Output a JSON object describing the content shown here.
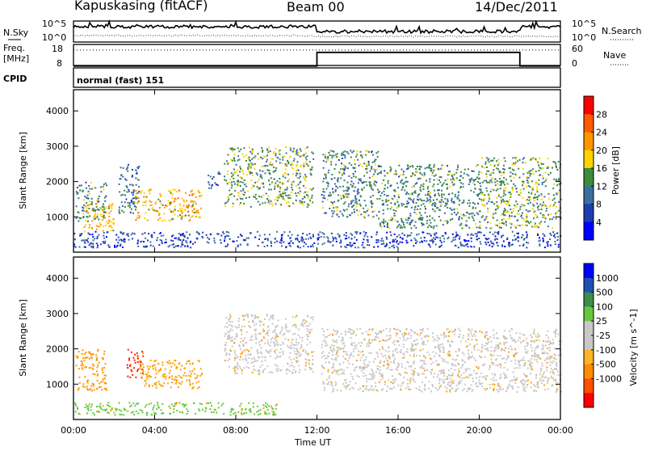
{
  "header": {
    "station": "Kapuskasing (fitACF)",
    "beam": "Beam 00",
    "date": "14/Dec/2011"
  },
  "noise_panel": {
    "left_label": "N.Sky",
    "right_label": "N.Search",
    "left_ticks": [
      "10^5",
      "10^0"
    ],
    "right_ticks": [
      "10^5",
      "10^0"
    ]
  },
  "freq_panel": {
    "left_label_line1": "Freq.",
    "left_label_line2": "[MHz]",
    "right_label": "Nave",
    "left_ticks": [
      "18",
      "8"
    ],
    "right_ticks": [
      "60",
      "0"
    ],
    "freq_steps": [
      {
        "t_start": 0,
        "t_end": 12,
        "level": 8.5
      },
      {
        "t_start": 12,
        "t_end": 22,
        "level": 15
      },
      {
        "t_start": 22,
        "t_end": 24,
        "level": 8.5
      }
    ],
    "nave_dotted_level": 44
  },
  "cpid": {
    "label": "CPID",
    "mode": "normal (fast) 151"
  },
  "colors": {
    "frame": "#000000",
    "ground_scatter": "#c8c8c8"
  },
  "chart_data": [
    {
      "type": "heatmap",
      "title": "Power",
      "ylabel": "Slant Range [km]",
      "ylim": [
        0,
        4600
      ],
      "xlim": [
        0,
        24
      ],
      "y_ticks": [
        "1000",
        "2000",
        "3000",
        "4000"
      ],
      "y_tick_values": [
        1000,
        2000,
        3000,
        4000
      ],
      "colorbar_label": "Power [dB]",
      "colorbar_ticks": [
        "28",
        "24",
        "20",
        "16",
        "12",
        "8",
        "4"
      ],
      "colorbar_colors": [
        "#ff0000",
        "#ff5a00",
        "#ff9600",
        "#ffd200",
        "#3c8c3c",
        "#3c6ea0",
        "#1e3cb4",
        "#0000ff"
      ],
      "scatter_regions": [
        {
          "t0": 0.1,
          "t1": 1.6,
          "r0": 900,
          "r1": 2000,
          "level": 10
        },
        {
          "t0": 0.5,
          "t1": 2.0,
          "r0": 600,
          "r1": 1400,
          "level": 18
        },
        {
          "t0": 2.2,
          "t1": 3.2,
          "r0": 1100,
          "r1": 2500,
          "level": 8
        },
        {
          "t0": 3.0,
          "t1": 6.3,
          "r0": 900,
          "r1": 1800,
          "level": 18
        },
        {
          "t0": 6.6,
          "t1": 7.2,
          "r0": 1800,
          "r1": 2300,
          "level": 6
        },
        {
          "t0": 7.4,
          "t1": 11.8,
          "r0": 1300,
          "r1": 3000,
          "level": 12
        },
        {
          "t0": 12.2,
          "t1": 15.0,
          "r0": 1000,
          "r1": 2900,
          "level": 10
        },
        {
          "t0": 15.0,
          "t1": 20.0,
          "r0": 700,
          "r1": 2500,
          "level": 10
        },
        {
          "t0": 20.0,
          "t1": 24.0,
          "r0": 700,
          "r1": 2700,
          "level": 12
        },
        {
          "t0": 0.0,
          "t1": 24.0,
          "r0": 150,
          "r1": 600,
          "level": 5
        }
      ]
    },
    {
      "type": "heatmap",
      "title": "Velocity",
      "ylabel": "Slant Range [km]",
      "ylim": [
        0,
        4600
      ],
      "xlim": [
        0,
        24
      ],
      "y_ticks": [
        "1000",
        "2000",
        "3000",
        "4000"
      ],
      "y_tick_values": [
        1000,
        2000,
        3000,
        4000
      ],
      "colorbar_label": "Velocity  [m s^-1]",
      "colorbar_ticks": [
        "1000",
        "500",
        "100",
        "25",
        "-25",
        "-100",
        "-500",
        "-1000"
      ],
      "colorbar_colors": [
        "#0000ff",
        "#1e50b4",
        "#3c8c50",
        "#64c83c",
        "#c8c8c8",
        "#c8c8c8",
        "#ffb428",
        "#ff8c00",
        "#ff5000",
        "#ff0000"
      ],
      "x_ticks": [
        "00:00",
        "04:00",
        "08:00",
        "12:00",
        "16:00",
        "20:00",
        "00:00"
      ],
      "x_tick_values": [
        0,
        4,
        8,
        12,
        16,
        20,
        24
      ],
      "xlabel": "Time UT",
      "scatter_regions": [
        {
          "t0": 0.1,
          "t1": 1.6,
          "r0": 800,
          "r1": 2000,
          "color": "#ff9600"
        },
        {
          "t0": 2.6,
          "t1": 3.4,
          "r0": 1200,
          "r1": 2000,
          "color": "#ff1e00"
        },
        {
          "t0": 3.2,
          "t1": 6.3,
          "r0": 900,
          "r1": 1700,
          "color": "#ffa000"
        },
        {
          "t0": 7.4,
          "t1": 11.8,
          "r0": 1300,
          "r1": 3000,
          "color": "#c8c8c8"
        },
        {
          "t0": 12.2,
          "t1": 24.0,
          "r0": 800,
          "r1": 2600,
          "color": "#c8c8c8"
        },
        {
          "t0": 0.0,
          "t1": 10.0,
          "r0": 150,
          "r1": 500,
          "color": "#64c83c"
        }
      ]
    }
  ]
}
